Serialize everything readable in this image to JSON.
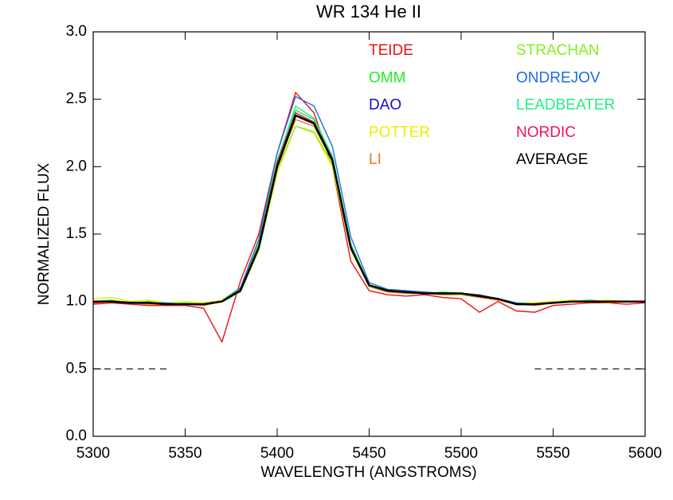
{
  "chart_data": {
    "type": "line",
    "title": "WR 134 He II",
    "xlabel": "WAVELENGTH (ANGSTROMS)",
    "ylabel": "NORMALIZED FLUX",
    "x": [
      5300,
      5310,
      5320,
      5330,
      5340,
      5350,
      5360,
      5370,
      5380,
      5390,
      5400,
      5410,
      5420,
      5430,
      5440,
      5450,
      5460,
      5470,
      5480,
      5490,
      5500,
      5510,
      5520,
      5530,
      5540,
      5550,
      5560,
      5570,
      5580,
      5590,
      5600
    ],
    "series": [
      {
        "name": "TEIDE",
        "color": "#ee1111",
        "values": [
          0.98,
          0.99,
          0.98,
          0.97,
          0.97,
          0.97,
          0.95,
          0.7,
          1.15,
          1.5,
          2.1,
          2.55,
          2.4,
          2.0,
          1.3,
          1.08,
          1.05,
          1.04,
          1.05,
          1.03,
          1.02,
          0.92,
          1.0,
          0.93,
          0.92,
          0.97,
          0.98,
          0.99,
          0.99,
          0.98,
          0.99
        ]
      },
      {
        "name": "OMM",
        "color": "#22ee22",
        "values": [
          1.0,
          1.01,
          0.99,
          1.0,
          0.98,
          0.99,
          0.98,
          1.01,
          1.1,
          1.45,
          2.05,
          2.42,
          2.35,
          2.08,
          1.42,
          1.12,
          1.09,
          1.08,
          1.06,
          1.07,
          1.06,
          1.04,
          1.02,
          0.99,
          0.98,
          0.99,
          1.0,
          1.01,
          1.0,
          1.0,
          1.0
        ]
      },
      {
        "name": "DAO",
        "color": "#1010cc",
        "values": [
          1.0,
          1.0,
          0.99,
          0.99,
          0.98,
          0.98,
          0.98,
          1.0,
          1.08,
          1.4,
          2.02,
          2.4,
          2.33,
          2.06,
          1.41,
          1.12,
          1.08,
          1.07,
          1.06,
          1.06,
          1.06,
          1.04,
          1.02,
          0.98,
          0.98,
          0.99,
          1.0,
          1.0,
          1.0,
          1.0,
          1.0
        ]
      },
      {
        "name": "POTTER",
        "color": "#eeee00",
        "values": [
          1.02,
          1.03,
          1.0,
          1.01,
          0.99,
          1.0,
          0.99,
          1.01,
          1.07,
          1.38,
          1.95,
          2.3,
          2.25,
          2.0,
          1.38,
          1.11,
          1.08,
          1.08,
          1.07,
          1.06,
          1.06,
          1.05,
          1.02,
          0.99,
          0.99,
          1.0,
          1.01,
          1.0,
          1.01,
          1.0,
          1.0
        ]
      },
      {
        "name": "LI",
        "color": "#ee7711",
        "values": [
          0.99,
          1.0,
          0.99,
          0.98,
          0.98,
          0.98,
          0.97,
          1.0,
          1.09,
          1.42,
          2.0,
          2.35,
          2.3,
          2.04,
          1.4,
          1.11,
          1.07,
          1.06,
          1.06,
          1.05,
          1.05,
          1.03,
          1.01,
          0.98,
          0.97,
          0.99,
          1.0,
          1.0,
          0.99,
          1.0,
          1.0
        ]
      },
      {
        "name": "STRACHAN",
        "color": "#88ee22",
        "values": [
          1.0,
          1.0,
          1.0,
          0.99,
          0.99,
          0.98,
          0.98,
          1.0,
          1.07,
          1.38,
          1.98,
          2.3,
          2.26,
          2.02,
          1.39,
          1.11,
          1.08,
          1.07,
          1.06,
          1.06,
          1.05,
          1.04,
          1.02,
          0.99,
          0.98,
          0.99,
          1.0,
          1.0,
          1.0,
          1.0,
          1.0
        ]
      },
      {
        "name": "ONDREJOV",
        "color": "#1e6ee6",
        "values": [
          1.0,
          1.0,
          0.99,
          0.99,
          0.99,
          0.98,
          0.98,
          1.0,
          1.1,
          1.46,
          2.1,
          2.52,
          2.45,
          2.15,
          1.48,
          1.14,
          1.09,
          1.08,
          1.07,
          1.06,
          1.06,
          1.05,
          1.02,
          0.99,
          0.98,
          0.99,
          1.0,
          1.0,
          1.0,
          1.0,
          1.0
        ]
      },
      {
        "name": "LEADBEATER",
        "color": "#22ee88",
        "values": [
          1.0,
          1.0,
          0.99,
          0.99,
          0.98,
          0.98,
          0.98,
          1.0,
          1.08,
          1.42,
          2.04,
          2.45,
          2.36,
          2.08,
          1.43,
          1.12,
          1.08,
          1.07,
          1.06,
          1.06,
          1.06,
          1.04,
          1.02,
          0.98,
          0.98,
          0.99,
          1.0,
          1.0,
          1.0,
          1.0,
          1.0
        ]
      },
      {
        "name": "NORDIC",
        "color": "#ee1166",
        "values": [
          0.99,
          1.0,
          0.99,
          0.99,
          0.98,
          0.98,
          0.98,
          1.0,
          1.08,
          1.41,
          2.03,
          2.4,
          2.33,
          2.06,
          1.41,
          1.12,
          1.08,
          1.07,
          1.06,
          1.06,
          1.06,
          1.04,
          1.02,
          0.98,
          0.98,
          0.99,
          1.0,
          1.0,
          1.0,
          1.0,
          1.0
        ]
      },
      {
        "name": "AVERAGE",
        "color": "#000000",
        "values": [
          1.0,
          1.0,
          0.99,
          0.99,
          0.98,
          0.98,
          0.98,
          1.0,
          1.08,
          1.4,
          2.0,
          2.38,
          2.32,
          2.05,
          1.4,
          1.12,
          1.08,
          1.07,
          1.06,
          1.06,
          1.06,
          1.04,
          1.02,
          0.98,
          0.98,
          0.99,
          1.0,
          1.0,
          1.0,
          1.0,
          1.0
        ]
      }
    ],
    "reference_lines": [
      {
        "x": [
          5300,
          5340
        ],
        "y": 0.5
      },
      {
        "x": [
          5540,
          5600
        ],
        "y": 0.5
      }
    ],
    "xlim": [
      5300,
      5600
    ],
    "xticks": [
      5300,
      5350,
      5400,
      5450,
      5500,
      5550,
      5600
    ],
    "ylim": [
      0,
      3
    ],
    "yticks": [
      {
        "value": 0,
        "label": "0.0"
      },
      0.5,
      {
        "value": 1,
        "label": "1.0"
      },
      1.5,
      {
        "value": 2,
        "label": "2.0"
      },
      2.5,
      {
        "value": 3,
        "label": "3.0"
      }
    ],
    "grid": false
  }
}
